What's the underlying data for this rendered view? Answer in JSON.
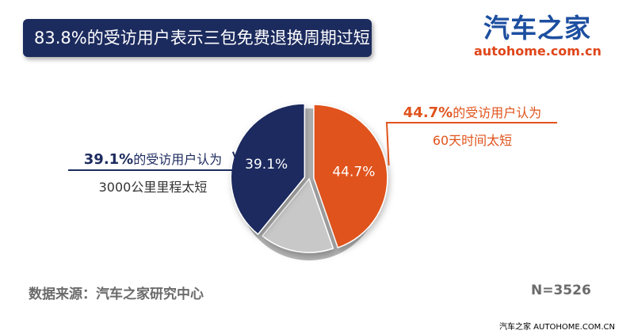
{
  "title": "83.8%的受访用户表示三包免费退换周期过短",
  "logo": {
    "name": "汽车之家",
    "url": "autohome.com.cn"
  },
  "chart_data": {
    "type": "pie",
    "slices": [
      {
        "value": 44.7,
        "label": "44.7%",
        "color": "#e0531c",
        "callout_pct": "44.7%",
        "callout_text": "的受访用户认为",
        "callout_line2": "60天时间太短"
      },
      {
        "value": 16.2,
        "label": "",
        "color": "#c8c8c8",
        "callout_pct": "",
        "callout_text": "",
        "callout_line2": ""
      },
      {
        "value": 39.1,
        "label": "39.1%",
        "color": "#1c2b5e",
        "callout_pct": "39.1%",
        "callout_text": "的受访用户认为",
        "callout_line2": "3000公里里程太短"
      }
    ],
    "note_total": "83.8%"
  },
  "source": "数据来源：汽车之家研究中心",
  "sample": "N=3526",
  "footer": "汽车之家 AUTOHOME.COM.CN"
}
